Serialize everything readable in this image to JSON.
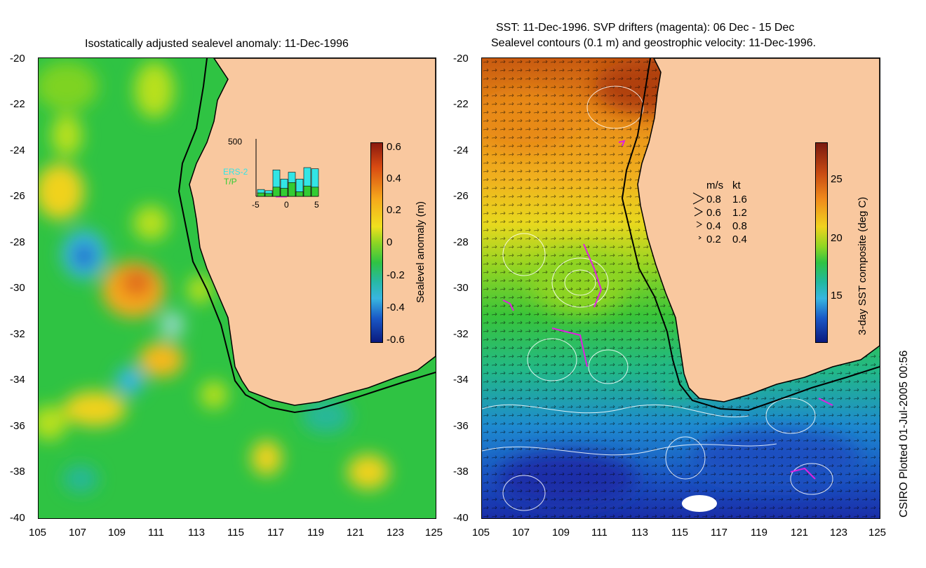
{
  "left_panel": {
    "title": "Isostatically adjusted sealevel anomaly: 11-Dec-1996",
    "colorbar": {
      "label": "Sealevel anomaly (m)",
      "ticks": [
        "0.6",
        "0.4",
        "0.2",
        "0",
        "-0.2",
        "-0.4",
        "-0.6"
      ],
      "range": [
        -0.6,
        0.6
      ]
    },
    "inset": {
      "ymax_label": "500",
      "legend_ers": "ERS-2",
      "legend_tp": "T/P",
      "x_ticks": [
        "-5",
        "0",
        "5"
      ],
      "ers_color": "#33e5e5",
      "tp_color": "#33cc33",
      "ers_values": [
        60,
        50,
        230,
        150,
        210,
        150,
        250,
        240
      ],
      "tp_values": [
        30,
        25,
        80,
        70,
        120,
        40,
        90,
        80
      ]
    }
  },
  "right_panel": {
    "title_line1": "SST: 11-Dec-1996. SVP drifters (magenta): 06 Dec - 15 Dec",
    "title_line2": "Sealevel contours (0.1 m) and geostrophic velocity: 11-Dec-1996.",
    "colorbar": {
      "label": "3-day SST composite (deg C)",
      "ticks": [
        "25",
        "20",
        "15"
      ],
      "range": [
        12,
        28
      ]
    },
    "velocity_legend": {
      "header_ms": "m/s",
      "header_kt": "kt",
      "rows": [
        {
          "ms": "0.8",
          "kt": "1.6"
        },
        {
          "ms": "0.6",
          "kt": "1.2"
        },
        {
          "ms": "0.4",
          "kt": "0.8"
        },
        {
          "ms": "0.2",
          "kt": "0.4"
        }
      ]
    }
  },
  "axes": {
    "y_ticks": [
      "-20",
      "-22",
      "-24",
      "-26",
      "-28",
      "-30",
      "-32",
      "-34",
      "-36",
      "-38",
      "-40"
    ],
    "x_ticks": [
      "105",
      "107",
      "109",
      "111",
      "113",
      "115",
      "117",
      "119",
      "121",
      "123",
      "125"
    ]
  },
  "credit": "CSIRO Plotted 01-Jul-2005 00:56",
  "colors": {
    "land": "#f9c89f",
    "sla_zero": "#2fc343",
    "coast": "#000000",
    "drifter": "#e020e0"
  }
}
